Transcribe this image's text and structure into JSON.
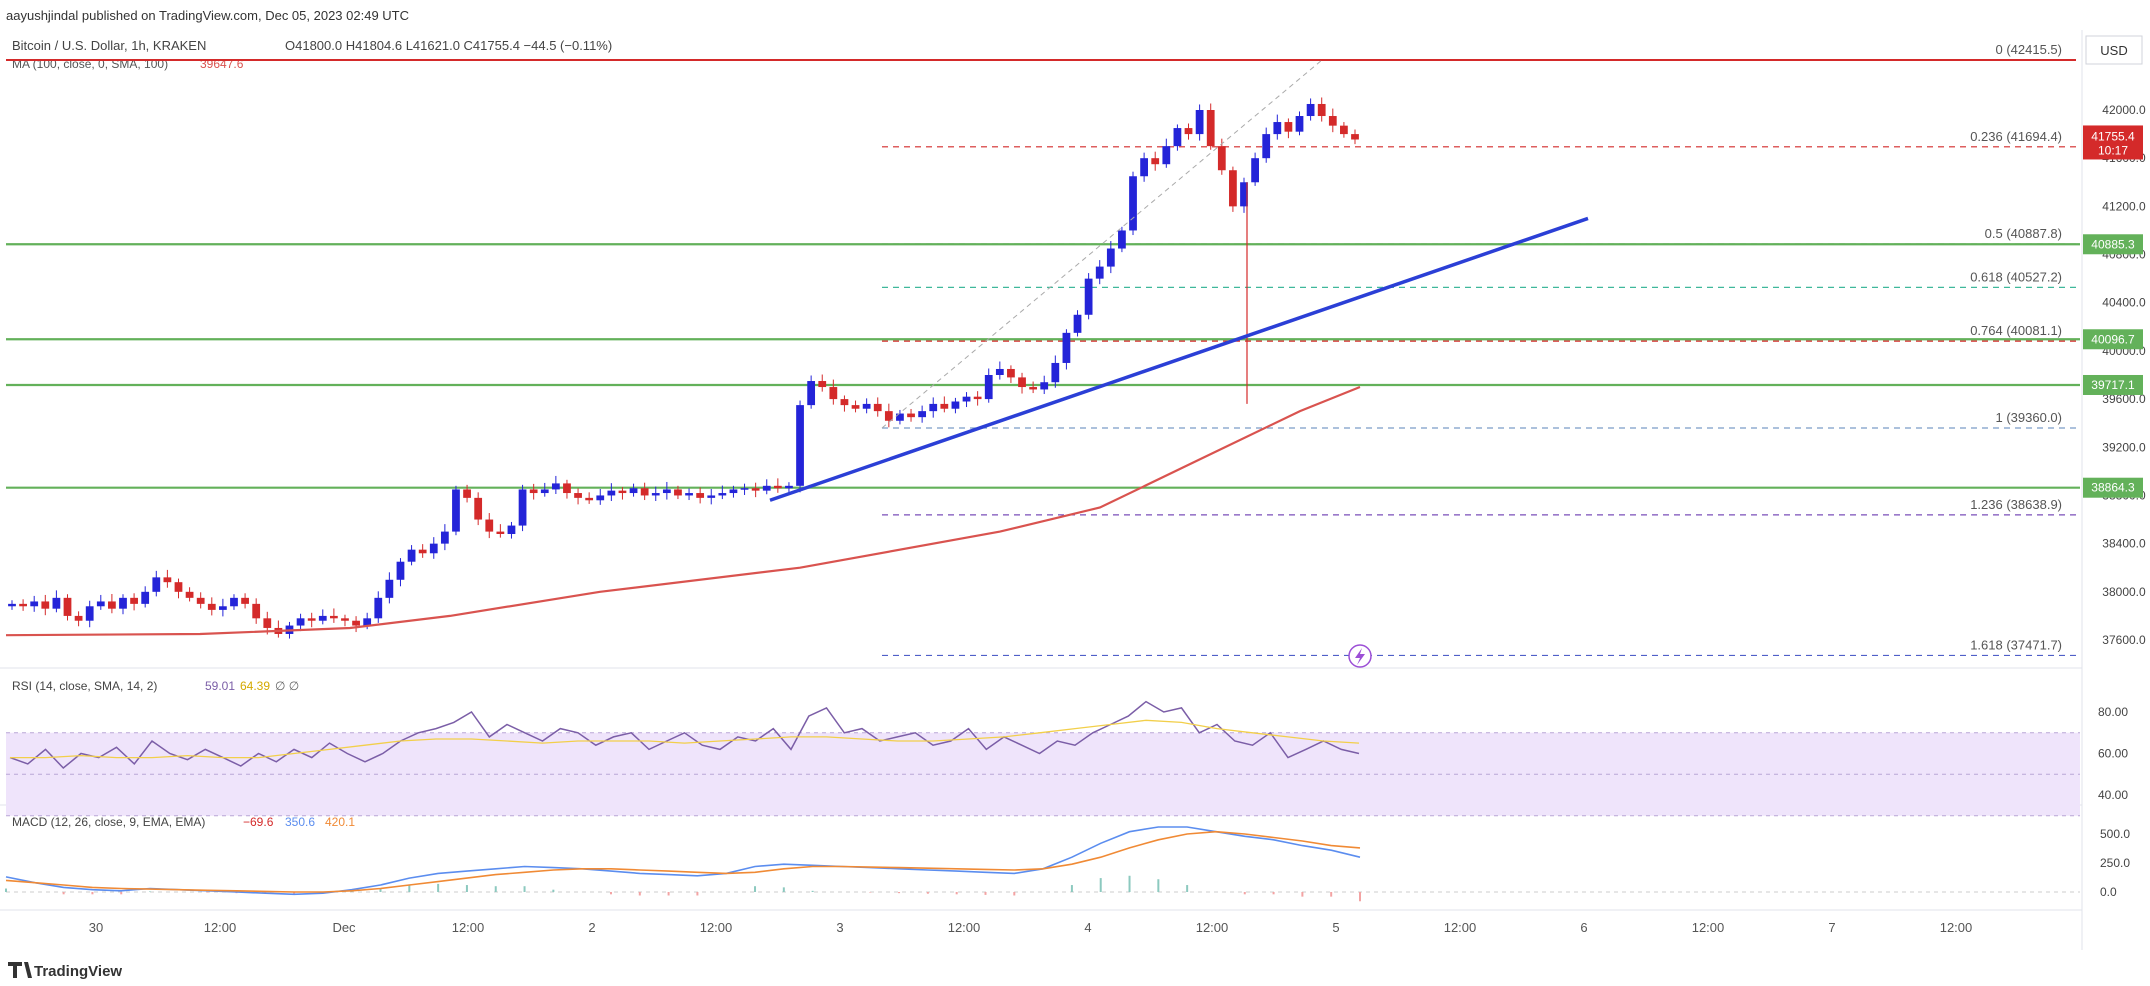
{
  "header": {
    "publisher": "aayushjindal published on TradingView.com, Dec 05, 2023 02:49 UTC",
    "symbol": "Bitcoin / U.S. Dollar, 1h, KRAKEN",
    "ohlc": "O41800.0 H41804.6 L41621.0 C41755.4 −44.5 (−0.11%)",
    "ma_label": "MA (100, close, 0, SMA, 100)",
    "ma_value": "39647.6",
    "currency": "USD"
  },
  "colors": {
    "up": "#2424d8",
    "down": "#d42a2a",
    "ma": "#d9534f",
    "hline": "#63b15a",
    "trend": "#2b3fd6",
    "rsi": "#7b5ea7",
    "rsi_ma": "#f2cf4a",
    "rsi_band": "#efe4fb",
    "macd": "#5b8def",
    "signal": "#f08a35"
  },
  "price_axis": {
    "ticks": [
      "42000.0",
      "41600.0",
      "41200.0",
      "40800.0",
      "40400.0",
      "40000.0",
      "39600.0",
      "39200.0",
      "38800.0",
      "38400.0",
      "38000.0",
      "37600.0"
    ],
    "last_price": "41755.4",
    "countdown": "10:17",
    "level_badges": [
      "40885.3",
      "40096.7",
      "39717.1",
      "38864.3"
    ]
  },
  "fib_levels": [
    {
      "label": "0 (42415.5)",
      "price": 42415.5,
      "color": "#d42a2a",
      "style": "solid"
    },
    {
      "label": "0.236 (41694.4)",
      "price": 41694.4,
      "color": "#d42a2a",
      "style": "dash"
    },
    {
      "label": "0.5 (40887.8)",
      "price": 40887.8,
      "color": "#63b15a",
      "style": "dash"
    },
    {
      "label": "0.618 (40527.2)",
      "price": 40527.2,
      "color": "#3fb89b",
      "style": "dash"
    },
    {
      "label": "0.764 (40081.1)",
      "price": 40081.1,
      "color": "#d42a2a",
      "style": "dash"
    },
    {
      "label": "1 (39360.0)",
      "price": 39360.0,
      "color": "#7a9cc6",
      "style": "dash"
    },
    {
      "label": "1.236 (38638.9)",
      "price": 38638.9,
      "color": "#7a4fb8",
      "style": "dash"
    },
    {
      "label": "1.618 (37471.7)",
      "price": 37471.7,
      "color": "#4f5fc8",
      "style": "dash"
    }
  ],
  "horizontal_levels": [
    40885.3,
    40096.7,
    39717.1,
    38864.3
  ],
  "rsi": {
    "label": "RSI (14, close, SMA, 14, 2)",
    "value": "59.01",
    "ma_value": "64.39",
    "extra": "∅ ∅",
    "ticks": [
      "80.00",
      "60.00",
      "40.00"
    ]
  },
  "macd": {
    "label": "MACD (12, 26, close, 9, EMA, EMA)",
    "value1": "−69.6",
    "value2": "350.6",
    "value3": "420.1",
    "ticks": [
      "500.0",
      "250.0",
      "0.0"
    ]
  },
  "time_axis": {
    "labels": [
      "30",
      "12:00",
      "Dec",
      "12:00",
      "2",
      "12:00",
      "3",
      "12:00",
      "4",
      "12:00",
      "5",
      "12:00",
      "6",
      "12:00",
      "7",
      "12:00"
    ]
  },
  "footer": {
    "brand": "TradingView"
  },
  "chart_data": {
    "type": "candlestick",
    "title": "Bitcoin / U.S. Dollar, 1h, KRAKEN",
    "ylim": [
      37400,
      42600
    ],
    "candles_close": [
      37900,
      37880,
      37920,
      37860,
      37950,
      37800,
      37760,
      37880,
      37920,
      37860,
      37950,
      37900,
      38000,
      38120,
      38080,
      38000,
      37950,
      37900,
      37850,
      37880,
      37950,
      37900,
      37780,
      37700,
      37650,
      37720,
      37780,
      37760,
      37800,
      37780,
      37760,
      37720,
      37780,
      37950,
      38100,
      38250,
      38350,
      38320,
      38400,
      38500,
      38850,
      38780,
      38600,
      38500,
      38480,
      38550,
      38850,
      38820,
      38850,
      38900,
      38820,
      38780,
      38760,
      38800,
      38840,
      38820,
      38860,
      38800,
      38820,
      38850,
      38800,
      38820,
      38780,
      38800,
      38820,
      38850,
      38860,
      38840,
      38880,
      38860,
      38880,
      39550,
      39750,
      39700,
      39600,
      39550,
      39520,
      39560,
      39500,
      39420,
      39480,
      39450,
      39500,
      39560,
      39520,
      39580,
      39620,
      39600,
      39800,
      39850,
      39780,
      39700,
      39680,
      39740,
      39900,
      40150,
      40300,
      40600,
      40700,
      40850,
      41000,
      41450,
      41600,
      41550,
      41700,
      41850,
      41800,
      42000,
      41700,
      41500,
      41200,
      41400,
      41600,
      41800,
      41900,
      41820,
      41950,
      42050,
      41950,
      41870,
      41800,
      41755
    ]
  }
}
